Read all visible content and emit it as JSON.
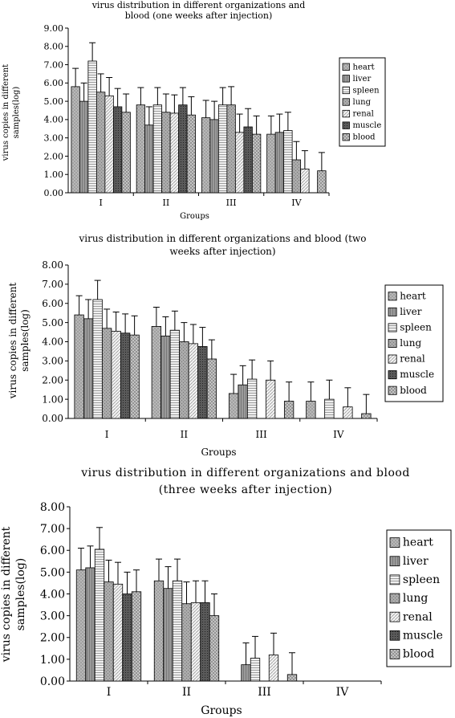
{
  "chart_data": [
    {
      "type": "bar",
      "title": "virus distribution in different organizations and blood (one weeks after injection)",
      "title_lines": [
        "virus distribution in different organizations and",
        "blood (one weeks after injection)"
      ],
      "xlabel": "Groups",
      "ylabel": "virus copies in different samples(log)",
      "ylabel_lines": [
        "virus copies in different",
        "samples(log)"
      ],
      "ylim": [
        0,
        9
      ],
      "yticks": [
        "0.00",
        "1.00",
        "2.00",
        "3.00",
        "4.00",
        "5.00",
        "6.00",
        "7.00",
        "8.00",
        "9.00"
      ],
      "categories": [
        "I",
        "II",
        "III",
        "IV"
      ],
      "legend_position": "right",
      "grid": false,
      "series": [
        {
          "name": "heart",
          "values": [
            5.8,
            4.8,
            4.1,
            3.2
          ],
          "errors": [
            1.0,
            0.95,
            0.95,
            1.0
          ]
        },
        {
          "name": "liver",
          "values": [
            5.0,
            3.7,
            4.0,
            3.3
          ],
          "errors": [
            1.0,
            1.0,
            1.0,
            1.0
          ]
        },
        {
          "name": "spleen",
          "values": [
            7.2,
            4.8,
            4.8,
            3.4
          ],
          "errors": [
            1.0,
            0.95,
            0.95,
            1.0
          ]
        },
        {
          "name": "lung",
          "values": [
            5.5,
            4.4,
            4.8,
            1.8
          ],
          "errors": [
            1.0,
            1.0,
            1.0,
            1.0
          ]
        },
        {
          "name": "renal",
          "values": [
            5.3,
            4.35,
            3.3,
            1.3
          ],
          "errors": [
            1.0,
            1.0,
            1.0,
            1.0
          ]
        },
        {
          "name": "muscle",
          "values": [
            4.7,
            4.8,
            3.6,
            null
          ],
          "errors": [
            1.0,
            0.95,
            1.0,
            0
          ]
        },
        {
          "name": "blood",
          "values": [
            4.4,
            4.25,
            3.2,
            1.2
          ],
          "errors": [
            1.0,
            1.0,
            1.0,
            1.0
          ]
        }
      ]
    },
    {
      "type": "bar",
      "title": "virus distribution in different organizations and blood (two weeks after injection)",
      "title_lines": [
        "virus distribution in different organizations and blood (two",
        "weeks after injection)"
      ],
      "xlabel": "Groups",
      "ylabel": "virus copies in different samples(log)",
      "ylabel_lines": [
        "virus copies in different",
        "samples(log)"
      ],
      "ylim": [
        0,
        8
      ],
      "yticks": [
        "0.00",
        "1.00",
        "2.00",
        "3.00",
        "4.00",
        "5.00",
        "6.00",
        "7.00",
        "8.00"
      ],
      "categories": [
        "I",
        "II",
        "III",
        "IV"
      ],
      "legend_position": "right",
      "grid": false,
      "series": [
        {
          "name": "heart",
          "values": [
            5.4,
            4.8,
            1.3,
            0.9
          ],
          "errors": [
            1.0,
            1.0,
            1.0,
            1.0
          ]
        },
        {
          "name": "liver",
          "values": [
            5.2,
            4.3,
            1.75,
            null
          ],
          "errors": [
            1.0,
            1.0,
            1.0,
            0
          ]
        },
        {
          "name": "spleen",
          "values": [
            6.2,
            4.6,
            2.05,
            1.0
          ],
          "errors": [
            1.0,
            1.0,
            1.0,
            1.0
          ]
        },
        {
          "name": "lung",
          "values": [
            4.7,
            4.0,
            null,
            null
          ],
          "errors": [
            1.0,
            1.0,
            0,
            0
          ]
        },
        {
          "name": "renal",
          "values": [
            4.55,
            3.9,
            2.0,
            0.6
          ],
          "errors": [
            1.0,
            1.0,
            1.0,
            1.0
          ]
        },
        {
          "name": "muscle",
          "values": [
            4.45,
            3.75,
            null,
            null
          ],
          "errors": [
            1.0,
            1.0,
            0,
            0
          ]
        },
        {
          "name": "blood",
          "values": [
            4.35,
            3.1,
            0.9,
            0.25
          ],
          "errors": [
            1.0,
            1.0,
            1.0,
            1.0
          ]
        }
      ]
    },
    {
      "type": "bar",
      "title": "virus distribution in different organizations and blood (three weeks after injection)",
      "title_lines": [
        "virus distribution in different organizations and blood",
        "(three weeks after injection)"
      ],
      "xlabel": "Groups",
      "ylabel": "virus copies in different samples(log)",
      "ylabel_lines": [
        "virus copies in different",
        "samples(log)"
      ],
      "ylim": [
        0,
        8
      ],
      "yticks": [
        "0.00",
        "1.00",
        "2.00",
        "3.00",
        "4.00",
        "5.00",
        "6.00",
        "7.00",
        "8.00"
      ],
      "categories": [
        "I",
        "II",
        "III",
        "IV"
      ],
      "legend_position": "right",
      "grid": false,
      "series": [
        {
          "name": "heart",
          "values": [
            5.1,
            4.6,
            null,
            null
          ],
          "errors": [
            1.0,
            1.0,
            0,
            0
          ]
        },
        {
          "name": "liver",
          "values": [
            5.2,
            4.25,
            0.75,
            null
          ],
          "errors": [
            1.0,
            1.0,
            1.0,
            0
          ]
        },
        {
          "name": "spleen",
          "values": [
            6.05,
            4.6,
            1.05,
            null
          ],
          "errors": [
            1.0,
            1.0,
            1.0,
            0
          ]
        },
        {
          "name": "lung",
          "values": [
            4.55,
            3.55,
            null,
            null
          ],
          "errors": [
            1.0,
            1.0,
            0,
            0
          ]
        },
        {
          "name": "renal",
          "values": [
            4.45,
            3.6,
            1.2,
            null
          ],
          "errors": [
            1.0,
            1.0,
            1.0,
            0
          ]
        },
        {
          "name": "muscle",
          "values": [
            4.0,
            3.6,
            null,
            null
          ],
          "errors": [
            1.0,
            1.0,
            0,
            0
          ]
        },
        {
          "name": "blood",
          "values": [
            4.1,
            3.0,
            0.3,
            null
          ],
          "errors": [
            1.0,
            1.0,
            1.0,
            0
          ]
        }
      ]
    }
  ],
  "colors": {
    "heart": "#b0b0b0",
    "liver": "#8a8a8a",
    "spleen": "#d8d8d8",
    "lung": "#a8a8a8",
    "renal": "#e8e8e8",
    "muscle": "#555555",
    "blood": "#c4c4c4",
    "axis": "#000000",
    "bar_stroke": "#000000"
  }
}
